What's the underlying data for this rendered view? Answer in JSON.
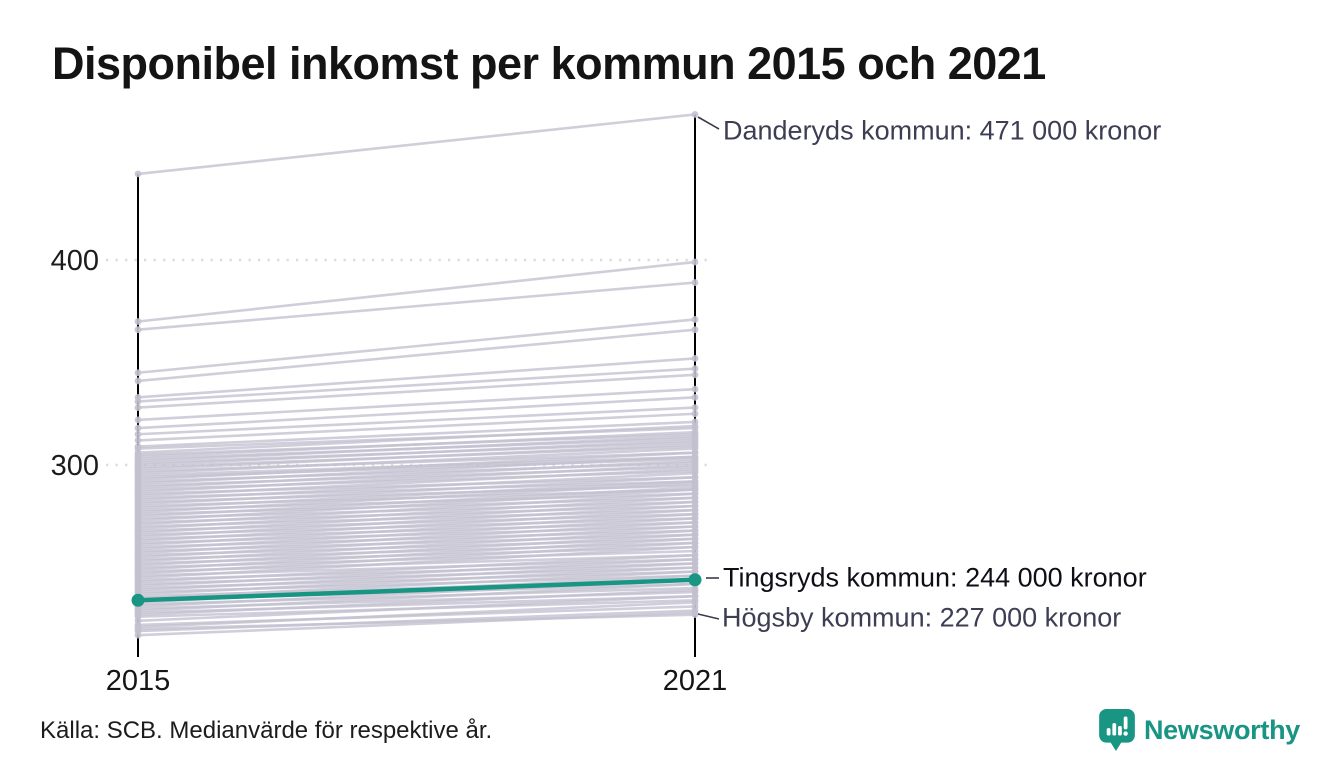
{
  "title": "Disponibel inkomst per kommun 2015 och 2021",
  "source": "Källa: SCB. Medianvärde för respektive år.",
  "branding": {
    "name": "Newsworthy",
    "icon": "speech-bubble-bar-chart-icon"
  },
  "colors": {
    "accent": "#189583",
    "line_gray": "#c3c0cf",
    "axis": "#000000",
    "grid": "#dcdcdc",
    "tick_text": "#1c1c1c",
    "annotation": "#3d3d53",
    "annotation_strong": "#0e0e16",
    "leader": "#3c3c4c"
  },
  "chart_data": {
    "type": "slope",
    "title": "Disponibel inkomst per kommun 2015 och 2021",
    "x_categories": [
      "2015",
      "2021"
    ],
    "unit": "tusental kronor",
    "yticks": [
      400,
      300
    ],
    "ylim": [
      209,
      475
    ],
    "grid": "dotted-horizontal",
    "legend_position": "none",
    "highlight": {
      "name": "Tingsryds kommun",
      "values": [
        234,
        244
      ]
    },
    "annotations": [
      {
        "label": "Danderyds kommun: 471 000 kronor",
        "kommun": "Danderyds kommun",
        "year": "2021",
        "value_thousands": 471
      },
      {
        "label": "Tingsryds kommun: 244 000 kronor",
        "kommun": "Tingsryds kommun",
        "year": "2021",
        "value_thousands": 244,
        "highlighted": true
      },
      {
        "label": "Högsby kommun: 227 000 kronor",
        "kommun": "Högsby kommun",
        "year": "2021",
        "value_thousands": 227
      }
    ],
    "background_lines": [
      [
        442,
        471
      ],
      [
        370,
        399
      ],
      [
        366,
        389
      ],
      [
        345,
        371
      ],
      [
        341,
        366
      ],
      [
        333,
        352
      ],
      [
        331,
        347
      ],
      [
        328,
        344
      ],
      [
        322,
        337
      ],
      [
        318,
        333
      ],
      [
        315,
        328
      ],
      [
        312,
        325
      ],
      [
        309,
        321
      ],
      [
        308,
        318
      ],
      [
        306,
        319
      ],
      [
        305,
        315
      ],
      [
        304,
        316
      ],
      [
        303,
        313
      ],
      [
        302,
        314
      ],
      [
        301,
        311
      ],
      [
        300,
        312
      ],
      [
        299,
        309
      ],
      [
        298,
        310
      ],
      [
        297,
        306
      ],
      [
        296,
        308
      ],
      [
        295,
        304
      ],
      [
        294,
        303
      ],
      [
        293,
        306
      ],
      [
        292,
        301
      ],
      [
        291,
        304
      ],
      [
        290,
        299
      ],
      [
        289,
        302
      ],
      [
        288,
        297
      ],
      [
        287,
        300
      ],
      [
        286,
        294
      ],
      [
        285,
        298
      ],
      [
        284,
        292
      ],
      [
        283,
        296
      ],
      [
        282,
        290
      ],
      [
        281,
        294
      ],
      [
        280,
        288
      ],
      [
        279,
        292
      ],
      [
        278,
        286
      ],
      [
        277,
        291
      ],
      [
        276,
        284
      ],
      [
        275,
        289
      ],
      [
        274,
        282
      ],
      [
        273,
        288
      ],
      [
        272,
        280
      ],
      [
        271,
        286
      ],
      [
        270,
        278
      ],
      [
        269,
        284
      ],
      [
        268,
        276
      ],
      [
        267,
        282
      ],
      [
        266,
        274
      ],
      [
        265,
        280
      ],
      [
        264,
        272
      ],
      [
        263,
        278
      ],
      [
        262,
        270
      ],
      [
        261,
        276
      ],
      [
        260,
        268
      ],
      [
        259,
        274
      ],
      [
        258,
        266
      ],
      [
        257,
        272
      ],
      [
        256,
        264
      ],
      [
        255,
        270
      ],
      [
        254,
        262
      ],
      [
        253,
        268
      ],
      [
        252,
        260
      ],
      [
        251,
        266
      ],
      [
        250,
        258
      ],
      [
        249,
        264
      ],
      [
        248,
        256
      ],
      [
        247,
        262
      ],
      [
        246,
        254
      ],
      [
        245,
        260
      ],
      [
        244,
        252
      ],
      [
        243,
        256
      ],
      [
        242,
        250
      ],
      [
        241,
        254
      ],
      [
        240,
        248
      ],
      [
        239,
        252
      ],
      [
        238,
        246
      ],
      [
        237,
        250
      ],
      [
        236,
        244
      ],
      [
        235,
        248
      ],
      [
        234,
        242
      ],
      [
        233,
        246
      ],
      [
        232,
        240
      ],
      [
        231,
        244
      ],
      [
        230,
        238
      ],
      [
        229,
        242
      ],
      [
        228,
        236
      ],
      [
        227,
        239
      ],
      [
        226,
        234
      ],
      [
        224,
        236
      ],
      [
        222,
        231
      ],
      [
        221,
        233
      ],
      [
        219,
        229
      ],
      [
        217,
        228
      ],
      [
        220,
        227
      ]
    ]
  }
}
